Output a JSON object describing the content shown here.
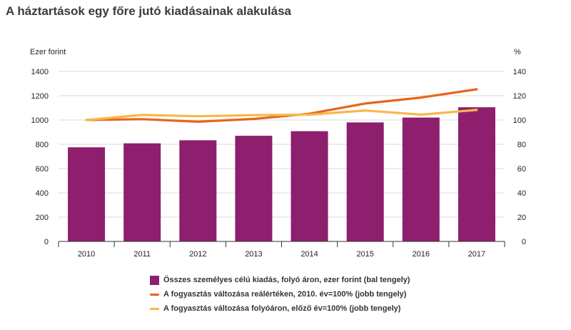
{
  "chart_data": {
    "type": "bar",
    "title": "A háztartások egy főre jutó kiadásainak alakulása",
    "left_axis_unit": "Ezer forint",
    "right_axis_unit": "%",
    "categories": [
      "2010",
      "2011",
      "2012",
      "2013",
      "2014",
      "2015",
      "2016",
      "2017"
    ],
    "left_ylim": [
      0,
      1400
    ],
    "right_ylim": [
      0,
      140
    ],
    "left_ticks": [
      "0",
      "200",
      "400",
      "600",
      "800",
      "1000",
      "1200",
      "1400"
    ],
    "right_ticks": [
      "0",
      "20",
      "40",
      "60",
      "80",
      "100",
      "120",
      "140"
    ],
    "grid": true,
    "legend_position": "bottom",
    "series": [
      {
        "name": "Összes személyes célú kiadás, folyó áron, ezer forint (bal tengely)",
        "type": "bar",
        "axis": "left",
        "color": "#8e1e6e",
        "values": [
          775,
          808,
          833,
          870,
          908,
          980,
          1020,
          1105
        ]
      },
      {
        "name": "A fogyasztás változása reálértéken, 2010. év=100% (jobb tengely)",
        "type": "line",
        "axis": "right",
        "color": "#e8641e",
        "values": [
          100,
          100.7,
          98.6,
          100.9,
          105.2,
          113.6,
          118.5,
          125.3
        ]
      },
      {
        "name": "A fogyasztás változása folyóáron, előző év=100% (jobb tengely)",
        "type": "line",
        "axis": "right",
        "color": "#f6b84a",
        "values": [
          100,
          104.2,
          103.1,
          104.0,
          104.4,
          107.8,
          104.4,
          108.3
        ]
      }
    ]
  }
}
